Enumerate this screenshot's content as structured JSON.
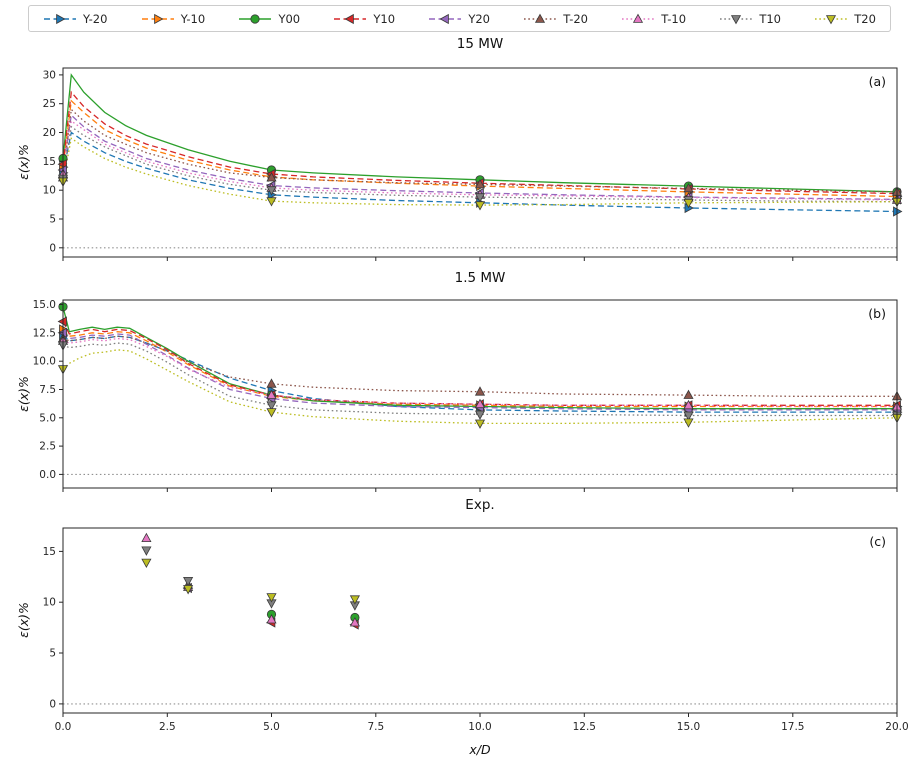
{
  "figure": {
    "xlabel": "x/D",
    "background": "#ffffff"
  },
  "legend": {
    "entries": [
      {
        "label": "Y-20",
        "color": "#1f77b4",
        "linestyle": "dashed",
        "marker": "triangle-right"
      },
      {
        "label": "Y-10",
        "color": "#ff7f0e",
        "linestyle": "dashed",
        "marker": "triangle-right"
      },
      {
        "label": "Y00",
        "color": "#2ca02c",
        "linestyle": "solid",
        "marker": "circle"
      },
      {
        "label": "Y10",
        "color": "#d62728",
        "linestyle": "dashed",
        "marker": "triangle-left"
      },
      {
        "label": "Y20",
        "color": "#9467bd",
        "linestyle": "dashed",
        "marker": "triangle-left"
      },
      {
        "label": "T-20",
        "color": "#8c564b",
        "linestyle": "dotted",
        "marker": "triangle-up"
      },
      {
        "label": "T-10",
        "color": "#e377c2",
        "linestyle": "dotted",
        "marker": "triangle-up"
      },
      {
        "label": "T10",
        "color": "#7f7f7f",
        "linestyle": "dotted",
        "marker": "triangle-down"
      },
      {
        "label": "T20",
        "color": "#bcbd22",
        "linestyle": "dotted",
        "marker": "triangle-down"
      }
    ]
  },
  "chart_data": [
    {
      "type": "line",
      "title": "15 MW",
      "panel_label": "(a)",
      "ylabel": "ε(x)%",
      "xlim": [
        0,
        20
      ],
      "ylim": [
        -1.6,
        31.2
      ],
      "zero_line": true,
      "yticks": {
        "values": [
          0,
          5,
          10,
          15,
          20,
          25,
          30
        ],
        "labels": [
          "0",
          "5",
          "10",
          "15",
          "20",
          "25",
          "30"
        ]
      },
      "xticks": {
        "values": [
          0,
          2.5,
          5,
          7.5,
          10,
          12.5,
          15,
          17.5,
          20
        ],
        "labels": []
      },
      "show_xticklabels": false,
      "x": [
        0,
        0.2,
        0.5,
        1,
        1.5,
        2,
        3,
        4,
        5,
        6,
        8,
        10,
        12,
        15,
        17.5,
        20
      ],
      "marker_x": [
        0,
        5,
        10,
        15,
        20
      ],
      "series": [
        {
          "name": "Y-20",
          "values": [
            13.0,
            20.0,
            18.5,
            16.5,
            15.0,
            13.8,
            11.8,
            10.3,
            9.2,
            8.8,
            8.2,
            7.8,
            7.4,
            6.9,
            6.6,
            6.3
          ]
        },
        {
          "name": "Y-10",
          "values": [
            14.0,
            25.5,
            23.5,
            20.5,
            18.8,
            17.3,
            15.2,
            13.5,
            12.3,
            11.8,
            11.2,
            10.7,
            10.3,
            9.7,
            9.3,
            8.9
          ]
        },
        {
          "name": "Y00",
          "values": [
            15.5,
            30.0,
            27.0,
            23.5,
            21.2,
            19.5,
            17.0,
            15.0,
            13.5,
            13.0,
            12.3,
            11.8,
            11.3,
            10.7,
            10.2,
            9.7
          ]
        },
        {
          "name": "Y10",
          "values": [
            14.5,
            27.0,
            24.5,
            21.5,
            19.5,
            18.0,
            15.8,
            14.0,
            12.8,
            12.3,
            11.7,
            11.2,
            10.8,
            10.2,
            9.8,
            9.4
          ]
        },
        {
          "name": "Y20",
          "values": [
            13.5,
            23.0,
            21.0,
            18.5,
            17.0,
            15.5,
            13.5,
            12.0,
            10.8,
            10.4,
            9.9,
            9.5,
            9.2,
            8.8,
            8.6,
            8.4
          ]
        },
        {
          "name": "T-20",
          "values": [
            12.2,
            24.0,
            22.0,
            19.5,
            18.0,
            16.5,
            14.5,
            13.0,
            12.2,
            11.8,
            11.3,
            11.0,
            10.7,
            10.3,
            10.0,
            9.7
          ]
        },
        {
          "name": "T-10",
          "values": [
            12.8,
            22.0,
            20.5,
            18.0,
            16.5,
            15.0,
            13.0,
            11.5,
            10.4,
            10.0,
            9.5,
            9.2,
            9.0,
            8.7,
            8.5,
            8.3
          ]
        },
        {
          "name": "T10",
          "values": [
            12.0,
            21.0,
            19.5,
            17.5,
            16.0,
            14.5,
            12.5,
            11.0,
            10.0,
            9.6,
            9.1,
            8.8,
            8.6,
            8.3,
            8.1,
            8.0
          ]
        },
        {
          "name": "T20",
          "values": [
            11.5,
            19.0,
            17.5,
            15.5,
            14.0,
            12.8,
            10.8,
            9.3,
            8.1,
            7.8,
            7.5,
            7.4,
            7.5,
            7.8,
            7.9,
            8.0
          ]
        }
      ]
    },
    {
      "type": "line",
      "title": "1.5 MW",
      "panel_label": "(b)",
      "ylabel": "ε(x)%",
      "xlim": [
        0,
        20
      ],
      "ylim": [
        -1.2,
        15.4
      ],
      "zero_line": true,
      "yticks": {
        "values": [
          0,
          2.5,
          5,
          7.5,
          10,
          12.5,
          15
        ],
        "labels": [
          "0.0",
          "2.5",
          "5.0",
          "7.5",
          "10.0",
          "12.5",
          "15.0"
        ]
      },
      "xticks": {
        "values": [
          0,
          2.5,
          5,
          7.5,
          10,
          12.5,
          15,
          17.5,
          20
        ],
        "labels": []
      },
      "show_xticklabels": false,
      "x": [
        0,
        0.15,
        0.4,
        0.7,
        1,
        1.3,
        1.6,
        2,
        2.5,
        3,
        4,
        5,
        6,
        8,
        10,
        12,
        15,
        17.5,
        20
      ],
      "marker_x": [
        0,
        5,
        10,
        15,
        20
      ],
      "series": [
        {
          "name": "Y-20",
          "values": [
            12.3,
            11.8,
            11.9,
            12.1,
            12.0,
            12.2,
            12.1,
            11.6,
            10.9,
            10.1,
            8.5,
            7.4,
            6.7,
            6.0,
            5.7,
            5.6,
            5.5,
            5.5,
            5.5
          ]
        },
        {
          "name": "Y-10",
          "values": [
            12.8,
            12.2,
            12.3,
            12.5,
            12.4,
            12.6,
            12.5,
            11.8,
            10.8,
            9.7,
            7.8,
            6.9,
            6.5,
            6.2,
            6.1,
            6.0,
            6.0,
            6.0,
            6.0
          ]
        },
        {
          "name": "Y00",
          "values": [
            14.8,
            12.6,
            12.8,
            13.0,
            12.8,
            13.0,
            12.9,
            12.1,
            11.1,
            10.0,
            8.0,
            7.0,
            6.5,
            6.1,
            6.0,
            5.9,
            5.8,
            5.8,
            5.8
          ]
        },
        {
          "name": "Y10",
          "values": [
            13.5,
            12.4,
            12.6,
            12.8,
            12.6,
            12.8,
            12.7,
            12.0,
            11.0,
            9.8,
            7.9,
            7.0,
            6.6,
            6.3,
            6.2,
            6.1,
            6.1,
            6.1,
            6.1
          ]
        },
        {
          "name": "Y20",
          "values": [
            12.5,
            12.0,
            12.1,
            12.3,
            12.2,
            12.4,
            12.3,
            11.5,
            10.5,
            9.4,
            7.5,
            6.7,
            6.3,
            6.0,
            5.9,
            5.8,
            5.7,
            5.7,
            5.7
          ]
        },
        {
          "name": "T-20",
          "values": [
            12.0,
            11.8,
            11.9,
            12.1,
            12.0,
            12.2,
            12.1,
            11.6,
            10.9,
            9.9,
            8.6,
            8.0,
            7.7,
            7.4,
            7.3,
            7.1,
            7.0,
            6.9,
            6.9
          ]
        },
        {
          "name": "T-10",
          "values": [
            11.8,
            11.6,
            11.7,
            11.9,
            11.8,
            12.0,
            11.9,
            11.3,
            10.4,
            9.3,
            7.7,
            7.0,
            6.6,
            6.3,
            6.2,
            6.1,
            6.1,
            6.0,
            6.0
          ]
        },
        {
          "name": "T10",
          "values": [
            11.4,
            11.2,
            11.3,
            11.5,
            11.4,
            11.6,
            11.5,
            10.9,
            9.9,
            8.8,
            6.9,
            6.1,
            5.7,
            5.4,
            5.3,
            5.3,
            5.2,
            5.2,
            5.2
          ]
        },
        {
          "name": "T20",
          "values": [
            9.3,
            9.8,
            10.3,
            10.7,
            10.8,
            11.0,
            10.9,
            10.2,
            9.2,
            8.2,
            6.4,
            5.5,
            5.1,
            4.7,
            4.5,
            4.5,
            4.6,
            4.8,
            5.0
          ]
        }
      ]
    },
    {
      "type": "scatter",
      "title": "Exp.",
      "panel_label": "(c)",
      "ylabel": "ε(x)%",
      "xlim": [
        0,
        20
      ],
      "ylim": [
        -0.9,
        17.3
      ],
      "zero_line": true,
      "yticks": {
        "values": [
          0,
          5,
          10,
          15
        ],
        "labels": [
          "0",
          "5",
          "10",
          "15"
        ]
      },
      "xticks": {
        "values": [
          0,
          2.5,
          5,
          7.5,
          10,
          12.5,
          15,
          17.5,
          20
        ],
        "labels": [
          "0.0",
          "2.5",
          "5.0",
          "7.5",
          "10.0",
          "12.5",
          "15.0",
          "17.5",
          "20.0"
        ]
      },
      "show_xticklabels": true,
      "x": [
        2,
        3,
        5,
        7
      ],
      "series": [
        {
          "name": "Y00",
          "values": [
            null,
            null,
            8.8,
            8.5
          ]
        },
        {
          "name": "Y10",
          "values": [
            null,
            null,
            8.0,
            7.8
          ]
        },
        {
          "name": "Y20",
          "values": [
            null,
            11.4,
            null,
            null
          ]
        },
        {
          "name": "T-20",
          "values": [
            null,
            11.7,
            null,
            null
          ]
        },
        {
          "name": "T-10",
          "values": [
            16.3,
            11.5,
            8.3,
            8.0
          ]
        },
        {
          "name": "T10",
          "values": [
            15.1,
            12.1,
            9.9,
            9.7
          ]
        },
        {
          "name": "T20",
          "values": [
            13.9,
            11.3,
            10.5,
            10.3
          ]
        }
      ]
    }
  ]
}
